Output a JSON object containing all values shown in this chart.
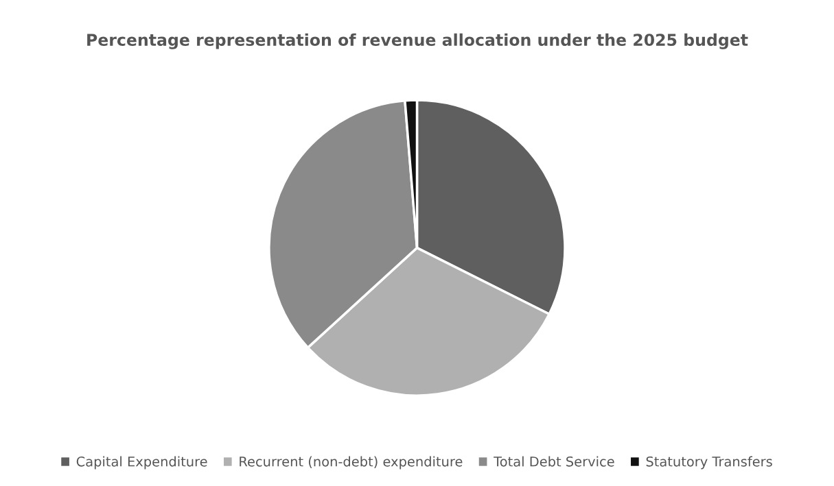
{
  "chart_data": {
    "type": "pie",
    "title": "Percentage representation of revenue allocation under the 2025 budget",
    "categories": [
      "Capital Expenditure",
      "Recurrent (non-debt) expenditure",
      "Total Debt Service",
      "Statutory Transfers"
    ],
    "values": [
      32.4,
      30.8,
      35.5,
      1.3
    ],
    "colors": [
      "#5f5f5f",
      "#b0b0b0",
      "#8a8a8a",
      "#111111"
    ],
    "legend": "bottom"
  }
}
